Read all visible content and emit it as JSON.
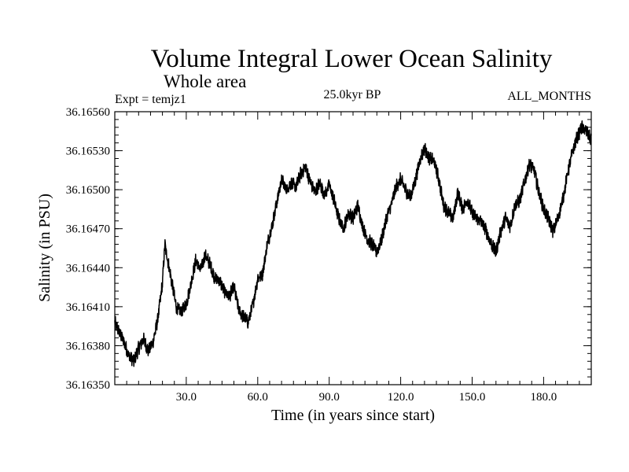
{
  "chart_data": {
    "type": "line",
    "title": "Volume Integral Lower Ocean Salinity",
    "subtitle": "Whole area",
    "annotations": {
      "left": "Expt = temjz1",
      "center": "25.0kyr BP",
      "right": "ALL_MONTHS"
    },
    "xlabel": "Time (in years since start)",
    "ylabel": "Salinity (in PSU)",
    "xlim": [
      0,
      200
    ],
    "ylim": [
      36.1635,
      36.1656
    ],
    "xticks": [
      30,
      60,
      90,
      120,
      150,
      180
    ],
    "xtick_labels": [
      "30.0",
      "60.0",
      "90.0",
      "120.0",
      "150.0",
      "180.0"
    ],
    "yticks": [
      36.1635,
      36.1638,
      36.1641,
      36.1644,
      36.1647,
      36.165,
      36.1653,
      36.1656
    ],
    "ytick_labels": [
      "36.16350",
      "36.16380",
      "36.16410",
      "36.16440",
      "36.16470",
      "36.16500",
      "36.16530",
      "36.16560"
    ],
    "grid": false,
    "series": [
      {
        "name": "Salinity",
        "color": "#000000",
        "x": [
          0,
          2,
          4,
          6,
          8,
          10,
          12,
          14,
          16,
          18,
          20,
          21,
          22,
          24,
          26,
          28,
          30,
          32,
          34,
          36,
          38,
          40,
          42,
          44,
          46,
          48,
          50,
          52,
          54,
          56,
          58,
          60,
          62,
          64,
          66,
          68,
          70,
          72,
          74,
          76,
          78,
          80,
          82,
          84,
          86,
          88,
          90,
          92,
          94,
          96,
          98,
          100,
          102,
          104,
          106,
          108,
          110,
          112,
          114,
          116,
          118,
          120,
          122,
          124,
          126,
          128,
          130,
          132,
          134,
          136,
          138,
          140,
          142,
          144,
          146,
          148,
          150,
          152,
          154,
          156,
          158,
          160,
          162,
          164,
          166,
          168,
          170,
          172,
          174,
          176,
          178,
          180,
          182,
          184,
          186,
          188,
          190,
          192,
          194,
          196,
          198,
          200
        ],
        "values": [
          36.16398,
          36.1639,
          36.16382,
          36.16372,
          36.16368,
          36.16378,
          36.16385,
          36.16376,
          36.16382,
          36.164,
          36.16428,
          36.16458,
          36.16448,
          36.16428,
          36.16408,
          36.16406,
          36.16412,
          36.16428,
          36.16446,
          36.16438,
          36.1645,
          36.16442,
          36.16432,
          36.1643,
          36.16422,
          36.16418,
          36.16425,
          36.16408,
          36.16402,
          36.16398,
          36.16412,
          36.16432,
          36.16435,
          36.16458,
          36.16472,
          36.1649,
          36.16508,
          36.165,
          36.16505,
          36.16502,
          36.16512,
          36.16518,
          36.16506,
          36.16498,
          36.16505,
          36.16496,
          36.16504,
          36.16492,
          36.16478,
          36.1647,
          36.16482,
          36.16478,
          36.16488,
          36.16472,
          36.16462,
          36.16458,
          36.16452,
          36.16462,
          36.16478,
          36.16488,
          36.16502,
          36.16508,
          36.165,
          36.16494,
          36.16506,
          36.16522,
          36.16532,
          36.16524,
          36.16522,
          36.16508,
          36.16488,
          36.16482,
          36.16478,
          36.16498,
          36.16485,
          36.16492,
          36.16482,
          36.16478,
          36.16475,
          36.16468,
          36.16458,
          36.16452,
          36.16468,
          36.16478,
          36.16472,
          36.16488,
          36.16492,
          36.16506,
          36.1652,
          36.16515,
          36.16498,
          36.16485,
          36.16478,
          36.16468,
          36.16478,
          36.16492,
          36.16512,
          36.16528,
          36.1654,
          36.16548,
          36.16545,
          36.16538
        ]
      }
    ]
  }
}
